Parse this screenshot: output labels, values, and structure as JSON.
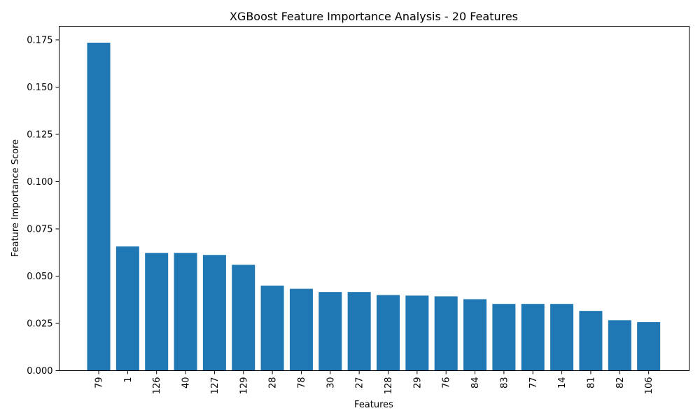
{
  "chart_data": {
    "type": "bar",
    "title": "XGBoost Feature Importance Analysis - 20 Features",
    "xlabel": "Features",
    "ylabel": "Feature Importance Score",
    "categories": [
      "79",
      "1",
      "126",
      "40",
      "127",
      "129",
      "28",
      "78",
      "30",
      "27",
      "128",
      "29",
      "76",
      "84",
      "83",
      "77",
      "14",
      "81",
      "82",
      "106"
    ],
    "values": [
      0.1735,
      0.0657,
      0.0623,
      0.0623,
      0.0612,
      0.056,
      0.045,
      0.0433,
      0.0416,
      0.0416,
      0.04,
      0.0397,
      0.0393,
      0.0378,
      0.0353,
      0.0353,
      0.0353,
      0.0316,
      0.0267,
      0.0257
    ],
    "ylim": [
      0,
      0.1822
    ],
    "yticks": [
      "0.000",
      "0.025",
      "0.050",
      "0.075",
      "0.100",
      "0.125",
      "0.150",
      "0.175"
    ],
    "bar_color": "#1f77b4",
    "grid": false,
    "legend": "none"
  }
}
